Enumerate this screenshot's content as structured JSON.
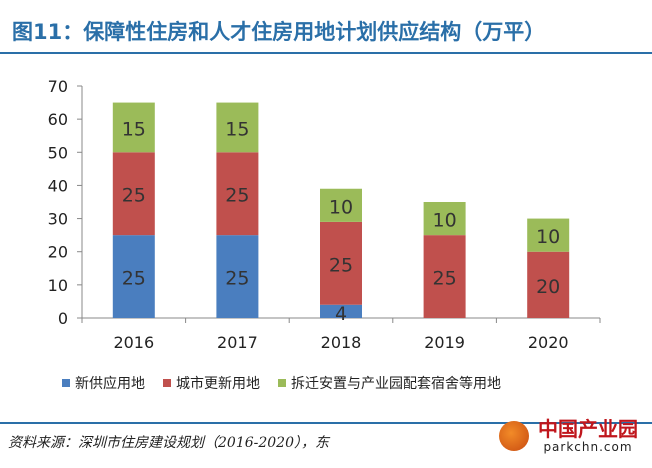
{
  "title": "图11：保障性住房和人才住房用地计划供应结构（万平）",
  "source": "资料来源：深圳市住房建设规划（2016-2020），东",
  "watermark": {
    "main": "中国产业园",
    "sub": "parkchn.com"
  },
  "colors": {
    "series1": "#4a7ebf",
    "series2": "#c0504d",
    "series3": "#9bbb59",
    "title": "#2a6fa8"
  },
  "chart_data": {
    "type": "bar",
    "stacked": true,
    "categories": [
      "2016",
      "2017",
      "2018",
      "2019",
      "2020"
    ],
    "series": [
      {
        "name": "新供应用地",
        "values": [
          25,
          25,
          4,
          0,
          0
        ],
        "color": "#4a7ebf"
      },
      {
        "name": "城市更新用地",
        "values": [
          25,
          25,
          25,
          25,
          20
        ],
        "color": "#c0504d"
      },
      {
        "name": "拆迁安置与产业园配套宿舍等用地",
        "values": [
          15,
          15,
          10,
          10,
          10
        ],
        "color": "#9bbb59"
      }
    ],
    "data_labels": [
      [
        "25",
        "25",
        "4",
        "",
        ""
      ],
      [
        "25",
        "25",
        "25",
        "25",
        "20"
      ],
      [
        "15",
        "15",
        "10",
        "10",
        "10"
      ]
    ],
    "yticks": [
      "0",
      "10",
      "20",
      "30",
      "40",
      "50",
      "60",
      "70"
    ],
    "ylim": [
      0,
      70
    ],
    "grid": false,
    "legend_position": "bottom"
  }
}
